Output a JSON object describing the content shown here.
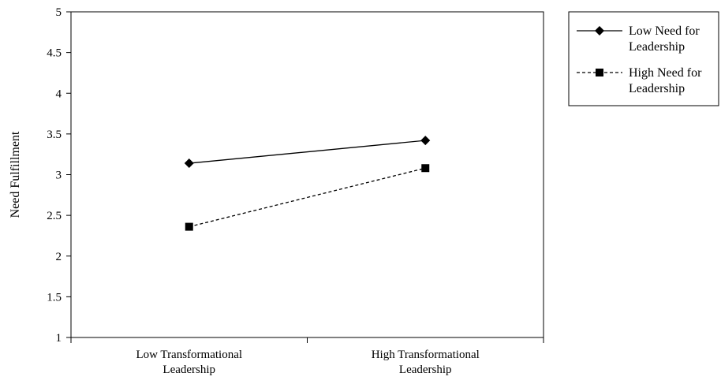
{
  "chart_data": {
    "type": "line",
    "categories": [
      [
        "Low Transformational",
        "Leadership"
      ],
      [
        "High Transformational",
        "Leadership"
      ]
    ],
    "ylabel": "Need Fulfillment",
    "xlabel": "",
    "ylim": [
      1,
      5
    ],
    "yticks": [
      "1",
      "1.5",
      "2",
      "2.5",
      "3",
      "3.5",
      "4",
      "4.5",
      "5"
    ],
    "grid": false,
    "legend_position": "top-right",
    "series": [
      {
        "name": [
          "Low Need for",
          "Leadership"
        ],
        "values": [
          3.14,
          3.42
        ],
        "marker": "diamond",
        "line": "solid",
        "color": "#000000"
      },
      {
        "name": [
          "High Need for",
          "Leadership"
        ],
        "values": [
          2.36,
          3.08
        ],
        "marker": "square",
        "line": "dashed",
        "color": "#000000"
      }
    ]
  }
}
